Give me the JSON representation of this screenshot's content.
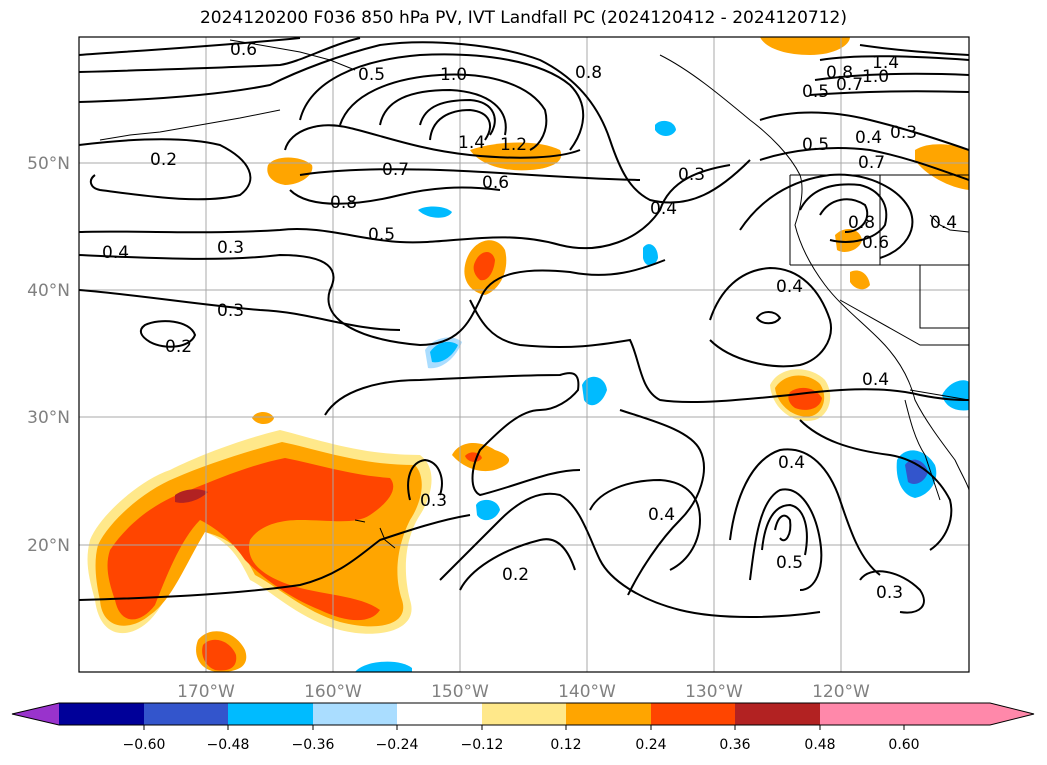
{
  "title": "2024120200 F036 850 hPa PV, IVT Landfall PC (2024120412 - 2024120712)",
  "lat_labels": [
    "50°N",
    "40°N",
    "30°N",
    "20°N"
  ],
  "lon_labels": [
    "170°W",
    "160°W",
    "150°W",
    "140°W",
    "130°W",
    "120°W"
  ],
  "contour_labels": [
    "0.6",
    "0.5",
    "1.0",
    "0.8",
    "1.4",
    "1.2",
    "0.7",
    "0.6",
    "0.8",
    "0.5",
    "0.2",
    "0.4",
    "0.3",
    "0.3",
    "0.2",
    "0.3",
    "0.4",
    "0.2",
    "0.3",
    "0.4",
    "0.4",
    "0.5",
    "0.3",
    "0.4",
    "0.5",
    "0.4",
    "0.7",
    "0.8",
    "0.6",
    "0.4",
    "0.7",
    "0.3",
    "0.5",
    "0.8",
    "1.4",
    "1.0",
    "0.4"
  ],
  "colorbar": {
    "ticks": [
      "−0.60",
      "−0.48",
      "−0.36",
      "−0.24",
      "−0.12",
      "0.12",
      "0.24",
      "0.36",
      "0.48",
      "0.60"
    ],
    "colors": [
      "#9933cc",
      "#000099",
      "#3355cc",
      "#00bbff",
      "#aaddff",
      "#ffffff",
      "#ffe88a",
      "#ffa500",
      "#ff4500",
      "#b22222",
      "#ff88aa"
    ]
  }
}
